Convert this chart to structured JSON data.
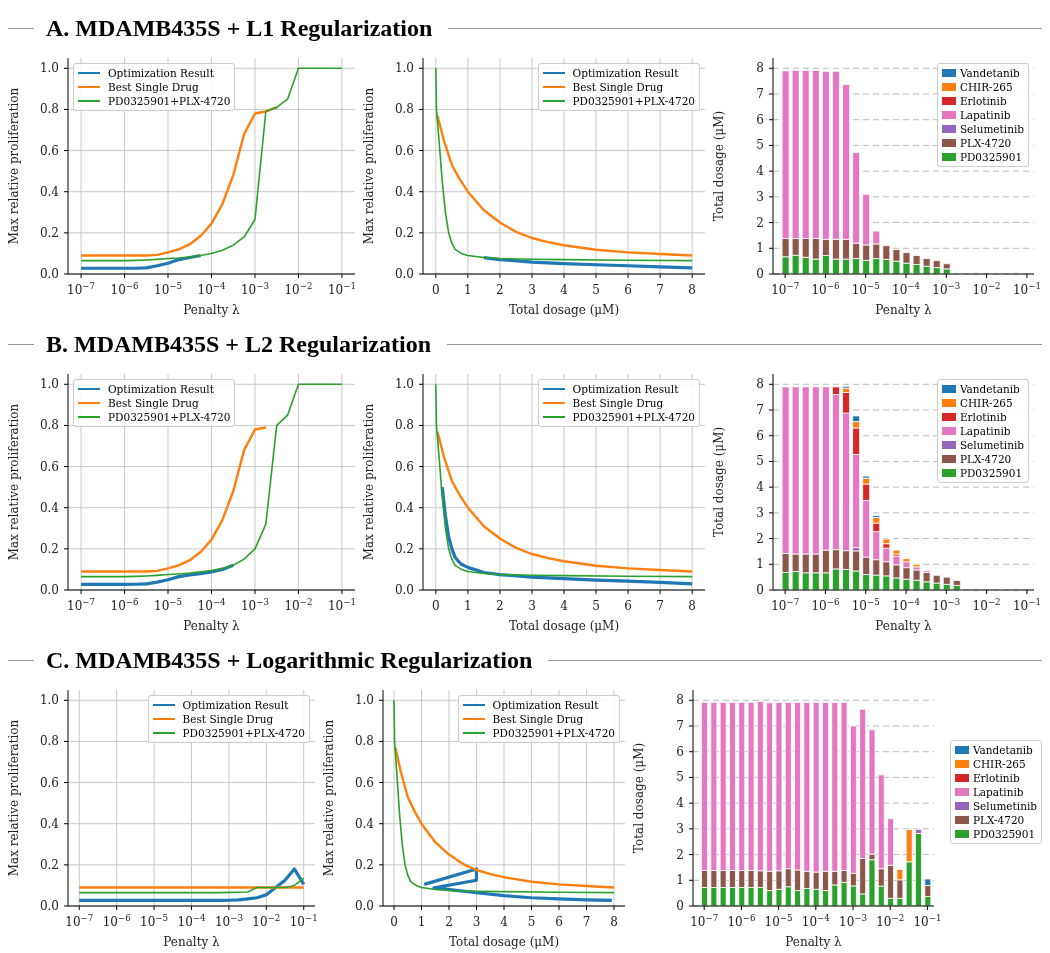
{
  "chart_data": [
    {
      "type": "line",
      "title": "A. MDAMB435S + L1 Regularization",
      "xlabel": "Penalty λ",
      "ylabel": "Max relative proliferation",
      "log": "x",
      "grid": true,
      "legend": "top left",
      "x": [
        1e-07,
        1.778e-07,
        3.162e-07,
        5.623e-07,
        1e-06,
        1.778e-06,
        3.162e-06,
        5.623e-06,
        1e-05,
        1.778e-05,
        3.162e-05,
        5.623e-05,
        0.0001,
        0.0001778,
        0.0003162,
        0.0005623,
        0.001,
        0.001778,
        0.003162,
        0.005623,
        0.01,
        0.01778,
        0.03162,
        0.05623,
        0.1
      ],
      "xlim": [
        5e-08,
        0.2
      ],
      "xticks": [
        {
          "value": 1e-07,
          "label": "10$^{−7}$"
        },
        {
          "value": 1e-06,
          "label": "10$^{−6}$"
        },
        {
          "value": 1e-05,
          "label": "10$^{−5}$"
        },
        {
          "value": 0.0001,
          "label": "10$^{−4}$"
        },
        {
          "value": 0.001,
          "label": "10$^{−3}$"
        },
        {
          "value": 0.01,
          "label": "10$^{−2}$"
        },
        {
          "value": 0.1,
          "label": "10$^{−1}$"
        }
      ],
      "ylim": [
        0,
        1.05
      ],
      "yticks": [
        {
          "value": 0,
          "label": "0.0"
        },
        {
          "value": 0.2,
          "label": "0.2"
        },
        {
          "value": 0.4,
          "label": "0.4"
        },
        {
          "value": 0.6,
          "label": "0.6"
        },
        {
          "value": 0.8,
          "label": "0.8"
        },
        {
          "value": 1,
          "label": "1.0"
        }
      ],
      "series": [
        {
          "name": "Optimization Result",
          "color": "#1f77b4",
          "values": [
            0.028,
            0.028,
            0.028,
            0.028,
            0.028,
            0.028,
            0.03,
            0.04,
            0.052,
            0.07,
            0.08,
            0.09,
            null,
            null,
            null,
            null,
            null,
            null,
            null,
            null,
            null,
            null,
            null,
            null,
            null
          ]
        },
        {
          "name": "Best Single Drug",
          "color": "#ff7f0e",
          "values": [
            0.09,
            0.09,
            0.09,
            0.09,
            0.09,
            0.09,
            0.09,
            0.093,
            0.105,
            0.12,
            0.145,
            0.185,
            0.245,
            0.34,
            0.48,
            0.68,
            0.78,
            0.79,
            0.81,
            null,
            null,
            null,
            null,
            null,
            null
          ]
        },
        {
          "name": "PD0325901+PLX-4720",
          "color": "#2ca02c",
          "values": [
            0.065,
            0.065,
            0.065,
            0.065,
            0.065,
            0.066,
            0.068,
            0.071,
            0.075,
            0.078,
            0.083,
            0.09,
            0.1,
            0.115,
            0.14,
            0.18,
            0.265,
            0.79,
            0.81,
            0.85,
            1.0,
            1.0,
            1.0,
            1.0,
            1.0
          ]
        }
      ]
    },
    {
      "type": "line",
      "xlabel": "Total dosage (μM)",
      "ylabel": "Max relative proliferation",
      "grid": true,
      "legend": "top right",
      "xlim": [
        -0.4,
        8.4
      ],
      "xticks": [
        0,
        1,
        2,
        3,
        4,
        5,
        6,
        7,
        8
      ],
      "ylim": [
        0,
        1.05
      ],
      "yticks": [
        {
          "value": 0,
          "label": "0.0"
        },
        {
          "value": 0.2,
          "label": "0.2"
        },
        {
          "value": 0.4,
          "label": "0.4"
        },
        {
          "value": 0.6,
          "label": "0.6"
        },
        {
          "value": 0.8,
          "label": "0.8"
        },
        {
          "value": 1,
          "label": "1.0"
        }
      ],
      "series": [
        {
          "name": "Optimization Result",
          "color": "#1f77b4",
          "x": [
            1.5,
            2,
            3,
            4,
            5,
            6,
            7,
            8
          ],
          "values": [
            0.08,
            0.07,
            0.058,
            0.05,
            0.045,
            0.04,
            0.035,
            0.03
          ]
        },
        {
          "name": "Best Single Drug",
          "color": "#ff7f0e",
          "x": [
            0.05,
            0.25,
            0.5,
            0.75,
            1,
            1.5,
            2,
            2.5,
            3,
            3.5,
            4,
            5,
            6,
            7,
            8
          ],
          "values": [
            0.77,
            0.65,
            0.53,
            0.46,
            0.4,
            0.31,
            0.25,
            0.205,
            0.175,
            0.155,
            0.14,
            0.118,
            0.105,
            0.097,
            0.09
          ]
        },
        {
          "name": "PD0325901+PLX-4720",
          "color": "#2ca02c",
          "x": [
            0,
            0.02,
            0.1,
            0.2,
            0.3,
            0.4,
            0.5,
            0.6,
            0.8,
            1,
            1.5,
            2,
            3,
            4,
            6,
            8
          ],
          "values": [
            1,
            0.8,
            0.65,
            0.45,
            0.3,
            0.2,
            0.15,
            0.12,
            0.1,
            0.09,
            0.08,
            0.075,
            0.072,
            0.07,
            0.067,
            0.065
          ]
        }
      ]
    },
    {
      "type": "bar",
      "stacked": true,
      "xlabel": "Penalty λ",
      "ylabel": "Total dosage (μM)",
      "log": "x",
      "grid": "y",
      "legend": "top right",
      "x": [
        1e-07,
        1.778e-07,
        3.162e-07,
        5.623e-07,
        1e-06,
        1.778e-06,
        3.162e-06,
        5.623e-06,
        1e-05,
        1.778e-05,
        3.162e-05,
        5.623e-05,
        0.0001,
        0.0001778,
        0.0003162,
        0.0005623,
        0.001
      ],
      "xlim": [
        5e-08,
        0.15
      ],
      "xticks": [
        {
          "value": 1e-07,
          "label": "10$^{−7}$"
        },
        {
          "value": 1e-06,
          "label": "10$^{−6}$"
        },
        {
          "value": 1e-05,
          "label": "10$^{−5}$"
        },
        {
          "value": 0.0001,
          "label": "10$^{−4}$"
        },
        {
          "value": 0.001,
          "label": "10$^{−3}$"
        },
        {
          "value": 0.01,
          "label": "10$^{−2}$"
        },
        {
          "value": 0.1,
          "label": "10$^{−1}$"
        }
      ],
      "ylim": [
        0,
        8.4
      ],
      "yticks": [
        0,
        1,
        2,
        3,
        4,
        5,
        6,
        7,
        8
      ],
      "series": [
        {
          "name": "PD0325901",
          "color": "#2ca02c",
          "values": [
            0.67,
            0.73,
            0.65,
            0.58,
            0.72,
            0.58,
            0.58,
            0.6,
            0.53,
            0.6,
            0.57,
            0.5,
            0.42,
            0.37,
            0.3,
            0.25,
            0.2
          ]
        },
        {
          "name": "PLX-4720",
          "color": "#8c564b",
          "values": [
            0.71,
            0.65,
            0.73,
            0.8,
            0.63,
            0.77,
            0.77,
            0.6,
            0.6,
            0.57,
            0.53,
            0.45,
            0.41,
            0.35,
            0.3,
            0.27,
            0.2
          ]
        },
        {
          "name": "Selumetinib",
          "color": "#9467bd",
          "values": [
            null,
            null,
            null,
            null,
            null,
            null,
            null,
            null,
            null,
            null,
            null,
            null,
            null,
            null,
            null,
            null,
            null
          ]
        },
        {
          "name": "Lapatinib",
          "color": "#e377c2",
          "values": [
            6.52,
            6.54,
            6.54,
            6.54,
            6.53,
            6.53,
            6.02,
            3.52,
            1.97,
            0.5,
            null,
            null,
            null,
            null,
            null,
            null,
            null
          ]
        },
        {
          "name": "Erlotinib",
          "color": "#d62728",
          "values": [
            null,
            null,
            null,
            null,
            null,
            null,
            null,
            null,
            null,
            null,
            null,
            null,
            null,
            null,
            null,
            null,
            null
          ]
        },
        {
          "name": "CHIR-265",
          "color": "#ff7f0e",
          "values": [
            null,
            null,
            null,
            null,
            null,
            null,
            null,
            null,
            null,
            null,
            null,
            null,
            null,
            null,
            null,
            null,
            null
          ]
        },
        {
          "name": "Vandetanib",
          "color": "#1f77b4",
          "values": [
            null,
            null,
            null,
            null,
            null,
            null,
            null,
            null,
            null,
            null,
            null,
            null,
            null,
            null,
            null,
            null,
            null
          ]
        }
      ]
    },
    {
      "type": "line",
      "title": "B. MDAMB435S + L2 Regularization",
      "xlabel": "Penalty λ",
      "ylabel": "Max relative proliferation",
      "log": "x",
      "grid": true,
      "legend": "top left",
      "x": [
        1e-07,
        1.778e-07,
        3.162e-07,
        5.623e-07,
        1e-06,
        1.778e-06,
        3.162e-06,
        5.623e-06,
        1e-05,
        1.778e-05,
        3.162e-05,
        5.623e-05,
        0.0001,
        0.0001778,
        0.0003162,
        0.0005623,
        0.001,
        0.001778,
        0.003162,
        0.005623,
        0.01,
        0.01778,
        0.03162,
        0.05623,
        0.1
      ],
      "xlim": [
        5e-08,
        0.2
      ],
      "xticks": [
        {
          "value": 1e-07,
          "label": "10$^{−7}$"
        },
        {
          "value": 1e-06,
          "label": "10$^{−6}$"
        },
        {
          "value": 1e-05,
          "label": "10$^{−5}$"
        },
        {
          "value": 0.0001,
          "label": "10$^{−4}$"
        },
        {
          "value": 0.001,
          "label": "10$^{−3}$"
        },
        {
          "value": 0.01,
          "label": "10$^{−2}$"
        },
        {
          "value": 0.1,
          "label": "10$^{−1}$"
        }
      ],
      "ylim": [
        0,
        1.05
      ],
      "yticks": [
        {
          "value": 0,
          "label": "0.0"
        },
        {
          "value": 0.2,
          "label": "0.2"
        },
        {
          "value": 0.4,
          "label": "0.4"
        },
        {
          "value": 0.6,
          "label": "0.6"
        },
        {
          "value": 0.8,
          "label": "0.8"
        },
        {
          "value": 1,
          "label": "1.0"
        }
      ],
      "series": [
        {
          "name": "Optimization Result",
          "color": "#1f77b4",
          "values": [
            0.027,
            0.027,
            0.027,
            0.027,
            0.027,
            0.028,
            0.03,
            0.038,
            0.05,
            0.065,
            0.073,
            0.08,
            0.088,
            0.1,
            0.12,
            null,
            null,
            null,
            null,
            null,
            null,
            null,
            null,
            null,
            null
          ]
        },
        {
          "name": "Best Single Drug",
          "color": "#ff7f0e",
          "values": [
            0.09,
            0.09,
            0.09,
            0.09,
            0.09,
            0.09,
            0.09,
            0.093,
            0.105,
            0.12,
            0.145,
            0.185,
            0.245,
            0.34,
            0.48,
            0.68,
            0.78,
            0.79,
            null,
            null,
            null,
            null,
            null,
            null,
            null
          ]
        },
        {
          "name": "PD0325901+PLX-4720",
          "color": "#2ca02c",
          "values": [
            0.065,
            0.065,
            0.065,
            0.065,
            0.065,
            0.066,
            0.068,
            0.071,
            0.075,
            0.078,
            0.082,
            0.088,
            0.095,
            0.105,
            0.12,
            0.15,
            0.2,
            0.32,
            0.8,
            0.85,
            1.0,
            1.0,
            1.0,
            1.0,
            1.0
          ]
        }
      ]
    },
    {
      "type": "line",
      "xlabel": "Total dosage (μM)",
      "ylabel": "Max relative proliferation",
      "grid": true,
      "legend": "top right",
      "xlim": [
        -0.4,
        8.4
      ],
      "xticks": [
        0,
        1,
        2,
        3,
        4,
        5,
        6,
        7,
        8
      ],
      "ylim": [
        0,
        1.05
      ],
      "yticks": [
        {
          "value": 0,
          "label": "0.0"
        },
        {
          "value": 0.2,
          "label": "0.2"
        },
        {
          "value": 0.4,
          "label": "0.4"
        },
        {
          "value": 0.6,
          "label": "0.6"
        },
        {
          "value": 0.8,
          "label": "0.8"
        },
        {
          "value": 1,
          "label": "1.0"
        }
      ],
      "series": [
        {
          "name": "Optimization Result",
          "color": "#1f77b4",
          "x": [
            0.2,
            0.3,
            0.4,
            0.5,
            0.6,
            0.7,
            0.8,
            1,
            1.5,
            2,
            3,
            4,
            5,
            6,
            7,
            8
          ],
          "values": [
            0.5,
            0.36,
            0.26,
            0.2,
            0.16,
            0.14,
            0.125,
            0.11,
            0.085,
            0.075,
            0.063,
            0.055,
            0.048,
            0.043,
            0.037,
            0.03
          ]
        },
        {
          "name": "Best Single Drug",
          "color": "#ff7f0e",
          "x": [
            0.05,
            0.25,
            0.5,
            0.75,
            1,
            1.5,
            2,
            2.5,
            3,
            3.5,
            4,
            5,
            6,
            7,
            8
          ],
          "values": [
            0.77,
            0.65,
            0.53,
            0.46,
            0.4,
            0.31,
            0.25,
            0.205,
            0.175,
            0.155,
            0.14,
            0.118,
            0.105,
            0.097,
            0.09
          ]
        },
        {
          "name": "PD0325901+PLX-4720",
          "color": "#2ca02c",
          "x": [
            0,
            0.02,
            0.1,
            0.2,
            0.3,
            0.4,
            0.5,
            0.6,
            0.8,
            1,
            1.5,
            2,
            3,
            4,
            6,
            8
          ],
          "values": [
            1,
            0.8,
            0.65,
            0.45,
            0.3,
            0.2,
            0.15,
            0.12,
            0.1,
            0.09,
            0.08,
            0.075,
            0.072,
            0.07,
            0.067,
            0.065
          ]
        }
      ]
    },
    {
      "type": "bar",
      "stacked": true,
      "xlabel": "Penalty λ",
      "ylabel": "Total dosage (μM)",
      "log": "x",
      "grid": "y",
      "legend": "top right",
      "x": [
        1e-07,
        1.778e-07,
        3.162e-07,
        5.623e-07,
        1e-06,
        1.778e-06,
        3.162e-06,
        5.623e-06,
        1e-05,
        1.778e-05,
        3.162e-05,
        5.623e-05,
        0.0001,
        0.0001778,
        0.0003162,
        0.0005623,
        0.001,
        0.001778
      ],
      "xlim": [
        5e-08,
        0.15
      ],
      "xticks": [
        {
          "value": 1e-07,
          "label": "10$^{−7}$"
        },
        {
          "value": 1e-06,
          "label": "10$^{−6}$"
        },
        {
          "value": 1e-05,
          "label": "10$^{−5}$"
        },
        {
          "value": 0.0001,
          "label": "10$^{−4}$"
        },
        {
          "value": 0.001,
          "label": "10$^{−3}$"
        },
        {
          "value": 0.01,
          "label": "10$^{−2}$"
        },
        {
          "value": 0.1,
          "label": "10$^{−1}$"
        }
      ],
      "ylim": [
        0,
        8.4
      ],
      "yticks": [
        0,
        1,
        2,
        3,
        4,
        5,
        6,
        7,
        8
      ],
      "series": [
        {
          "name": "PD0325901",
          "color": "#2ca02c",
          "values": [
            0.68,
            0.72,
            0.67,
            0.67,
            0.67,
            0.82,
            0.8,
            0.74,
            0.6,
            0.58,
            0.55,
            0.47,
            0.42,
            0.38,
            0.32,
            0.27,
            0.22,
            0.18
          ]
        },
        {
          "name": "PLX-4720",
          "color": "#8c564b",
          "values": [
            0.74,
            0.68,
            0.73,
            0.73,
            0.88,
            0.75,
            0.73,
            0.78,
            0.68,
            0.6,
            0.55,
            0.51,
            0.45,
            0.4,
            0.36,
            0.3,
            0.28,
            0.19
          ]
        },
        {
          "name": "Selumetinib",
          "color": "#9467bd",
          "values": [
            null,
            null,
            null,
            null,
            null,
            null,
            null,
            0.13,
            null,
            null,
            null,
            null,
            null,
            null,
            null,
            null,
            null,
            null
          ]
        },
        {
          "name": "Lapatinib",
          "color": "#e377c2",
          "values": [
            6.48,
            6.5,
            6.5,
            6.5,
            6.35,
            6.03,
            5.35,
            3.62,
            2.2,
            1.09,
            0.53,
            0.34,
            0.23,
            0.12,
            0.07,
            null,
            null,
            null
          ]
        },
        {
          "name": "Erlotinib",
          "color": "#d62728",
          "values": [
            null,
            null,
            null,
            null,
            null,
            0.3,
            0.8,
            1.03,
            0.64,
            0.33,
            0.17,
            0.08,
            null,
            null,
            null,
            null,
            null,
            null
          ]
        },
        {
          "name": "CHIR-265",
          "color": "#ff7f0e",
          "values": [
            null,
            null,
            null,
            null,
            null,
            null,
            0.17,
            0.25,
            0.23,
            0.22,
            0.18,
            0.15,
            0.12,
            0.1,
            null,
            null,
            null,
            null
          ]
        },
        {
          "name": "Vandetanib",
          "color": "#1f77b4",
          "values": [
            null,
            null,
            null,
            null,
            null,
            null,
            0.07,
            0.22,
            0.08,
            0.08,
            null,
            null,
            null,
            null,
            null,
            null,
            null,
            null
          ]
        }
      ]
    },
    {
      "type": "line",
      "title": "C. MDAMB435S + Logarithmic Regularization",
      "xlabel": "Penalty λ",
      "ylabel": "Max relative proliferation",
      "log": "x",
      "grid": true,
      "legend": "top right",
      "x": [
        1e-07,
        1.778e-07,
        3.162e-07,
        5.623e-07,
        1e-06,
        1.778e-06,
        3.162e-06,
        5.623e-06,
        1e-05,
        1.778e-05,
        3.162e-05,
        5.623e-05,
        0.0001,
        0.0001778,
        0.0003162,
        0.0005623,
        0.001,
        0.001778,
        0.003162,
        0.005623,
        0.01,
        0.01778,
        0.03162,
        0.05623,
        0.1
      ],
      "xlim": [
        5e-08,
        0.2
      ],
      "xticks": [
        {
          "value": 1e-07,
          "label": "10$^{−7}$"
        },
        {
          "value": 1e-06,
          "label": "10$^{−6}$"
        },
        {
          "value": 1e-05,
          "label": "10$^{−5}$"
        },
        {
          "value": 0.0001,
          "label": "10$^{−4}$"
        },
        {
          "value": 0.001,
          "label": "10$^{−3}$"
        },
        {
          "value": 0.01,
          "label": "10$^{−2}$"
        },
        {
          "value": 0.1,
          "label": "10$^{−1}$"
        }
      ],
      "ylim": [
        0,
        1.05
      ],
      "yticks": [
        {
          "value": 0,
          "label": "0.0"
        },
        {
          "value": 0.2,
          "label": "0.2"
        },
        {
          "value": 0.4,
          "label": "0.4"
        },
        {
          "value": 0.6,
          "label": "0.6"
        },
        {
          "value": 0.8,
          "label": "0.8"
        },
        {
          "value": 1,
          "label": "1.0"
        }
      ],
      "series": [
        {
          "name": "Optimization Result",
          "color": "#1f77b4",
          "values": [
            0.027,
            0.027,
            0.027,
            0.027,
            0.027,
            0.027,
            0.027,
            0.027,
            0.027,
            0.027,
            0.027,
            0.027,
            0.027,
            0.027,
            0.027,
            0.027,
            0.028,
            0.03,
            0.035,
            0.04,
            0.055,
            0.09,
            0.125,
            0.18,
            0.105
          ]
        },
        {
          "name": "Best Single Drug",
          "color": "#ff7f0e",
          "values": [
            0.09,
            0.09,
            0.09,
            0.09,
            0.09,
            0.09,
            0.09,
            0.09,
            0.09,
            0.09,
            0.09,
            0.09,
            0.09,
            0.09,
            0.09,
            0.09,
            0.09,
            0.09,
            0.09,
            0.09,
            0.09,
            0.09,
            0.09,
            0.09,
            0.09
          ]
        },
        {
          "name": "PD0325901+PLX-4720",
          "color": "#2ca02c",
          "values": [
            0.065,
            0.065,
            0.065,
            0.065,
            0.065,
            0.065,
            0.065,
            0.065,
            0.065,
            0.065,
            0.065,
            0.065,
            0.065,
            0.065,
            0.065,
            0.065,
            0.066,
            0.067,
            0.068,
            0.09,
            0.09,
            0.09,
            0.09,
            0.1,
            0.135
          ]
        }
      ]
    },
    {
      "type": "line",
      "xlabel": "Total dosage (μM)",
      "ylabel": "Max relative proliferation",
      "grid": true,
      "legend": "top right",
      "xlim": [
        -0.4,
        8.4
      ],
      "xticks": [
        0,
        1,
        2,
        3,
        4,
        5,
        6,
        7,
        8
      ],
      "ylim": [
        0,
        1.05
      ],
      "yticks": [
        {
          "value": 0,
          "label": "0.0"
        },
        {
          "value": 0.2,
          "label": "0.2"
        },
        {
          "value": 0.4,
          "label": "0.4"
        },
        {
          "value": 0.6,
          "label": "0.6"
        },
        {
          "value": 0.8,
          "label": "0.8"
        },
        {
          "value": 1,
          "label": "1.0"
        }
      ],
      "series": [
        {
          "name": "Optimization Result",
          "color": "#1f77b4",
          "x": [
            7.92,
            7,
            6,
            5,
            4,
            3,
            1.45,
            3,
            3,
            1.1
          ],
          "values": [
            0.027,
            0.03,
            0.035,
            0.04,
            0.05,
            0.065,
            0.088,
            0.125,
            0.18,
            0.105
          ]
        },
        {
          "name": "Best Single Drug",
          "color": "#ff7f0e",
          "x": [
            0.05,
            0.25,
            0.5,
            0.75,
            1,
            1.5,
            2,
            2.5,
            3,
            3.5,
            4,
            5,
            6,
            7,
            8
          ],
          "values": [
            0.77,
            0.65,
            0.53,
            0.46,
            0.4,
            0.31,
            0.25,
            0.205,
            0.175,
            0.155,
            0.14,
            0.118,
            0.105,
            0.097,
            0.09
          ]
        },
        {
          "name": "PD0325901+PLX-4720",
          "color": "#2ca02c",
          "x": [
            0,
            0.02,
            0.1,
            0.2,
            0.3,
            0.4,
            0.5,
            0.6,
            0.8,
            1,
            1.5,
            2,
            3,
            4,
            6,
            8
          ],
          "values": [
            1,
            0.8,
            0.65,
            0.45,
            0.3,
            0.2,
            0.15,
            0.12,
            0.1,
            0.09,
            0.08,
            0.075,
            0.072,
            0.07,
            0.067,
            0.065
          ]
        }
      ]
    },
    {
      "type": "bar",
      "stacked": true,
      "xlabel": "Penalty λ",
      "ylabel": "Total dosage (μM)",
      "log": "x",
      "grid": "y",
      "legend": "right",
      "x": [
        1e-07,
        1.778e-07,
        3.162e-07,
        5.623e-07,
        1e-06,
        1.778e-06,
        3.162e-06,
        5.623e-06,
        1e-05,
        1.778e-05,
        3.162e-05,
        5.623e-05,
        0.0001,
        0.0001778,
        0.0003162,
        0.0005623,
        0.001,
        0.001778,
        0.003162,
        0.005623,
        0.01,
        0.01778,
        0.03162,
        0.05623,
        0.1
      ],
      "xlim": [
        5e-08,
        0.15
      ],
      "xticks": [
        {
          "value": 1e-07,
          "label": "10$^{−7}$"
        },
        {
          "value": 1e-06,
          "label": "10$^{−6}$"
        },
        {
          "value": 1e-05,
          "label": "10$^{−5}$"
        },
        {
          "value": 0.0001,
          "label": "10$^{−4}$"
        },
        {
          "value": 0.001,
          "label": "10$^{−3}$"
        },
        {
          "value": 0.01,
          "label": "10$^{−2}$"
        },
        {
          "value": 0.1,
          "label": "10$^{−1}$"
        }
      ],
      "ylim": [
        0,
        8.4
      ],
      "yticks": [
        0,
        1,
        2,
        3,
        4,
        5,
        6,
        7,
        8
      ],
      "series": [
        {
          "name": "PD0325901",
          "color": "#2ca02c",
          "values": [
            0.72,
            0.72,
            0.72,
            0.72,
            0.72,
            0.72,
            0.72,
            0.6,
            0.65,
            0.75,
            0.6,
            0.68,
            0.65,
            0.6,
            0.82,
            0.92,
            0.78,
            0.47,
            1.8,
            0.77,
            0.3,
            0.3,
            1.72,
            2.82,
            0.37
          ]
        },
        {
          "name": "PLX-4720",
          "color": "#8c564b",
          "values": [
            0.66,
            0.66,
            0.66,
            0.66,
            0.66,
            0.66,
            0.65,
            0.75,
            0.72,
            0.7,
            0.8,
            0.67,
            0.67,
            0.75,
            0.53,
            0.46,
            0.49,
            1.38,
            0.22,
            0.68,
            1.28,
            0.72,
            null,
            null,
            0.43
          ]
        },
        {
          "name": "Selumetinib",
          "color": "#9467bd",
          "values": [
            null,
            null,
            null,
            null,
            null,
            null,
            null,
            null,
            null,
            null,
            null,
            null,
            null,
            null,
            null,
            null,
            null,
            null,
            null,
            null,
            null,
            null,
            null,
            0.16,
            null
          ]
        },
        {
          "name": "Lapatinib",
          "color": "#e377c2",
          "values": [
            6.54,
            6.54,
            6.54,
            6.54,
            6.54,
            6.54,
            6.58,
            6.55,
            6.55,
            6.47,
            6.52,
            6.57,
            6.6,
            6.57,
            6.57,
            6.54,
            5.73,
            5.8,
            4.83,
            3.65,
            1.82,
            null,
            null,
            null,
            null
          ]
        },
        {
          "name": "Erlotinib",
          "color": "#d62728",
          "values": [
            null,
            null,
            null,
            null,
            null,
            null,
            null,
            null,
            null,
            null,
            null,
            null,
            null,
            null,
            null,
            null,
            null,
            null,
            null,
            null,
            null,
            null,
            null,
            null,
            null
          ]
        },
        {
          "name": "CHIR-265",
          "color": "#ff7f0e",
          "values": [
            null,
            null,
            null,
            null,
            null,
            null,
            null,
            null,
            null,
            null,
            null,
            null,
            null,
            null,
            null,
            null,
            null,
            null,
            null,
            null,
            null,
            0.4,
            1.25,
            null,
            null
          ]
        },
        {
          "name": "Vandetanib",
          "color": "#1f77b4",
          "values": [
            null,
            null,
            null,
            null,
            null,
            null,
            null,
            null,
            null,
            null,
            null,
            null,
            null,
            null,
            null,
            null,
            null,
            null,
            null,
            null,
            null,
            null,
            null,
            null,
            0.25
          ]
        }
      ]
    }
  ]
}
